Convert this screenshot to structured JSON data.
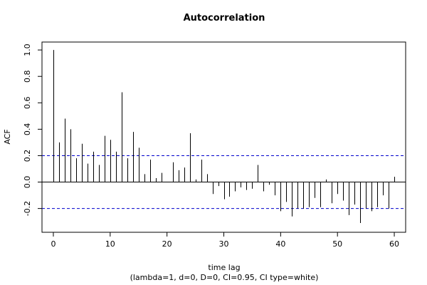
{
  "chart_data": {
    "type": "bar",
    "title": "Autocorrelation",
    "xlabel": "time lag",
    "subtitle": "(lambda=1, d=0, D=0, CI=0.95, CI type=white)",
    "ylabel": "ACF",
    "xlim": [
      -2,
      62
    ],
    "ylim": [
      -0.38,
      1.06
    ],
    "xticks": [
      0,
      10,
      20,
      30,
      40,
      50,
      60
    ],
    "yticks": [
      -0.2,
      0.0,
      0.2,
      0.4,
      0.6,
      0.8,
      1.0
    ],
    "ytick_labels": [
      "-0.2",
      "0.0",
      "0.2",
      "0.4",
      "0.6",
      "0.8",
      "1.0"
    ],
    "confidence_limits": [
      0.2,
      -0.2
    ],
    "confidence_line_color": "#0000cc",
    "x": [
      0,
      1,
      2,
      3,
      4,
      5,
      6,
      7,
      8,
      9,
      10,
      11,
      12,
      13,
      14,
      15,
      16,
      17,
      18,
      19,
      20,
      21,
      22,
      23,
      24,
      25,
      26,
      27,
      28,
      29,
      30,
      31,
      32,
      33,
      34,
      35,
      36,
      37,
      38,
      39,
      40,
      41,
      42,
      43,
      44,
      45,
      46,
      47,
      48,
      49,
      50,
      51,
      52,
      53,
      54,
      55,
      56,
      57,
      58,
      59,
      60
    ],
    "values": [
      1.0,
      0.3,
      0.48,
      0.4,
      0.18,
      0.29,
      0.14,
      0.23,
      0.13,
      0.35,
      0.32,
      0.23,
      0.68,
      0.18,
      0.38,
      0.26,
      0.06,
      0.17,
      0.03,
      0.07,
      0.0,
      0.15,
      0.09,
      0.11,
      0.37,
      0.02,
      0.17,
      0.06,
      -0.09,
      -0.03,
      -0.13,
      -0.11,
      -0.07,
      -0.04,
      -0.06,
      -0.05,
      0.13,
      -0.07,
      -0.02,
      -0.1,
      -0.22,
      -0.15,
      -0.26,
      -0.2,
      -0.2,
      -0.19,
      -0.12,
      -0.19,
      0.02,
      -0.16,
      -0.09,
      -0.14,
      -0.25,
      -0.17,
      -0.31,
      -0.2,
      -0.22,
      -0.19,
      -0.1,
      -0.2,
      0.04
    ],
    "grid": false,
    "legend": "none"
  }
}
